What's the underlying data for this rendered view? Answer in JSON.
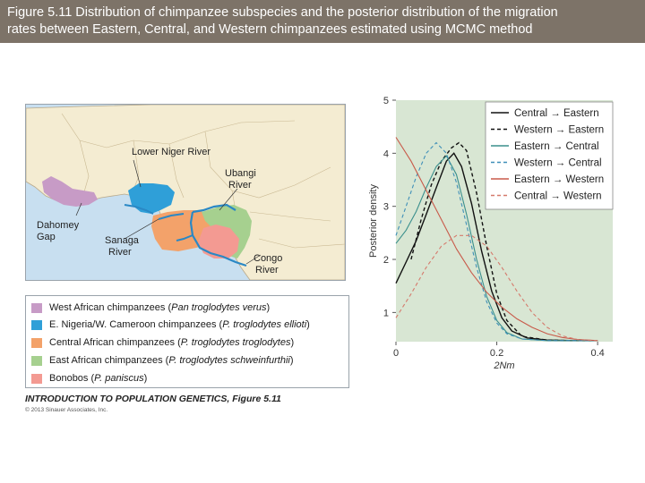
{
  "header": {
    "line1": "Figure 5.11  Distribution of chimpanzee subspecies and the posterior distribution of the migration",
    "line2": "rates between Eastern, Central, and Western chimpanzees estimated using MCMC method"
  },
  "map": {
    "labels": {
      "lower_niger": "Lower Niger River",
      "ubangi_1": "Ubangi",
      "ubangi_2": "River",
      "dahomey_1": "Dahomey",
      "dahomey_2": "Gap",
      "sanaga_1": "Sanaga",
      "sanaga_2": "River",
      "congo_1": "Congo",
      "congo_2": "River"
    },
    "colors": {
      "ocean": "#c8dff0",
      "land": "#f4ecd2",
      "border": "#b9a98a",
      "river": "#2a88c5",
      "west": "#c79bc6",
      "nigeria": "#2f9fd8",
      "central": "#f3a26a",
      "east": "#a6d08f",
      "bonobo": "#f39a92"
    }
  },
  "legend": {
    "items": [
      {
        "name": "West African chimpanzees",
        "sci": "Pan troglodytes verus",
        "color": "#c79bc6"
      },
      {
        "name": "E. Nigeria/W. Cameroon chimpanzees",
        "sci": "P. troglodytes ellioti",
        "color": "#2f9fd8"
      },
      {
        "name": "Central African chimpanzees",
        "sci": "P. troglodytes troglodytes",
        "color": "#f3a26a"
      },
      {
        "name": "East African chimpanzees",
        "sci": "P. troglodytes schweinfurthii",
        "color": "#a6d08f"
      },
      {
        "name": "Bonobos",
        "sci": "P. paniscus",
        "color": "#f39a92"
      }
    ]
  },
  "credit": {
    "title": "INTRODUCTION TO POPULATION GENETICS, Figure 5.11",
    "copyright": "© 2013 Sinauer Associates, Inc."
  },
  "chart_data": {
    "type": "line",
    "title": "",
    "xlabel": "2Nm",
    "ylabel": "Posterior density",
    "xlim": [
      0,
      0.43
    ],
    "ylim": [
      0.45,
      5
    ],
    "xticks": [
      "0",
      "0.2",
      "0.4"
    ],
    "yticks": [
      "1",
      "2",
      "3",
      "4",
      "5"
    ],
    "background": "#d8e6d3",
    "grid": false,
    "legend_position": "top-right",
    "series": [
      {
        "name": "Central → Eastern",
        "color": "#111111",
        "dash": "solid",
        "x": [
          0,
          0.02,
          0.04,
          0.06,
          0.08,
          0.1,
          0.115,
          0.13,
          0.15,
          0.17,
          0.19,
          0.21,
          0.23,
          0.26,
          0.3,
          0.35,
          0.4
        ],
        "y": [
          1.55,
          1.95,
          2.35,
          2.85,
          3.35,
          3.85,
          4.0,
          3.75,
          3.05,
          2.15,
          1.4,
          0.9,
          0.65,
          0.52,
          0.48,
          0.47,
          0.47
        ]
      },
      {
        "name": "Western → Eastern",
        "color": "#111111",
        "dash": "dashed",
        "x": [
          0.03,
          0.05,
          0.07,
          0.09,
          0.11,
          0.125,
          0.14,
          0.16,
          0.18,
          0.2,
          0.22,
          0.25,
          0.3,
          0.35,
          0.4
        ],
        "y": [
          2.0,
          2.75,
          3.4,
          3.85,
          4.1,
          4.2,
          4.05,
          3.25,
          2.25,
          1.35,
          0.85,
          0.55,
          0.48,
          0.47,
          0.47
        ]
      },
      {
        "name": "Eastern → Central",
        "color": "#3a8f8c",
        "dash": "solid",
        "x": [
          0,
          0.02,
          0.04,
          0.06,
          0.08,
          0.1,
          0.12,
          0.14,
          0.16,
          0.18,
          0.2,
          0.22,
          0.25,
          0.3,
          0.35,
          0.4
        ],
        "y": [
          2.3,
          2.55,
          2.9,
          3.35,
          3.75,
          3.95,
          3.6,
          2.85,
          2.0,
          1.3,
          0.85,
          0.62,
          0.5,
          0.47,
          0.47,
          0.47
        ]
      },
      {
        "name": "Western → Central",
        "color": "#3f8fb8",
        "dash": "dashed",
        "x": [
          0,
          0.02,
          0.04,
          0.06,
          0.08,
          0.1,
          0.12,
          0.14,
          0.16,
          0.18,
          0.2,
          0.22,
          0.25,
          0.3,
          0.35,
          0.4
        ],
        "y": [
          2.45,
          3.0,
          3.55,
          4.0,
          4.2,
          4.0,
          3.45,
          2.65,
          1.85,
          1.2,
          0.8,
          0.6,
          0.5,
          0.47,
          0.47,
          0.47
        ]
      },
      {
        "name": "Eastern → Western",
        "color": "#c85a4a",
        "dash": "solid",
        "x": [
          0,
          0.03,
          0.06,
          0.09,
          0.12,
          0.15,
          0.18,
          0.21,
          0.24,
          0.27,
          0.3,
          0.33,
          0.36,
          0.4
        ],
        "y": [
          4.3,
          3.85,
          3.3,
          2.75,
          2.2,
          1.75,
          1.38,
          1.1,
          0.88,
          0.72,
          0.6,
          0.53,
          0.49,
          0.47
        ]
      },
      {
        "name": "Central → Western",
        "color": "#d57a6c",
        "dash": "dashed",
        "x": [
          0,
          0.03,
          0.06,
          0.09,
          0.12,
          0.15,
          0.18,
          0.21,
          0.24,
          0.27,
          0.3,
          0.33,
          0.36,
          0.4
        ],
        "y": [
          0.9,
          1.35,
          1.85,
          2.25,
          2.45,
          2.45,
          2.25,
          1.85,
          1.4,
          1.0,
          0.72,
          0.56,
          0.49,
          0.47
        ]
      }
    ]
  }
}
